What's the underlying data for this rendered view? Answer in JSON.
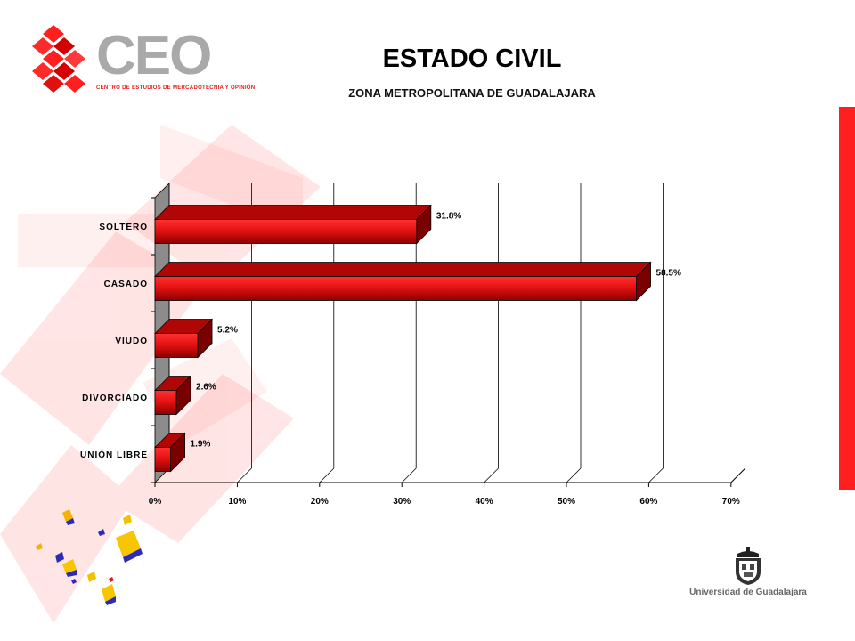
{
  "header": {
    "title": "ESTADO CIVIL",
    "subtitle": "ZONA METROPOLITANA DE GUADALAJARA"
  },
  "logo": {
    "text": "CEO",
    "tagline": "CENTRO DE ESTUDIOS DE MERCADOTECNIA Y OPINIÓN"
  },
  "footer_logo": {
    "text": "Universidad de Guadalajara"
  },
  "colors": {
    "bar_front": "#e01010",
    "bar_dark": "#7a0000",
    "bar_top": "#b00606",
    "accent_red": "#ff1f1f",
    "wall": "#8c8c8c",
    "grid": "#000000"
  },
  "chart_data": {
    "type": "bar",
    "orientation": "horizontal",
    "categories": [
      "SOLTERO",
      "CASADO",
      "VIUDO",
      "DIVORCIADO",
      "UNIÓN LIBRE"
    ],
    "values": [
      31.8,
      58.5,
      5.2,
      2.6,
      1.9
    ],
    "value_labels": [
      "31.8%",
      "58.5%",
      "5.2%",
      "2.6%",
      "1.9%"
    ],
    "x_ticks": [
      "0%",
      "10%",
      "20%",
      "30%",
      "40%",
      "50%",
      "60%",
      "70%"
    ],
    "xlim": [
      0,
      70
    ],
    "grid": true,
    "style": "3d"
  }
}
